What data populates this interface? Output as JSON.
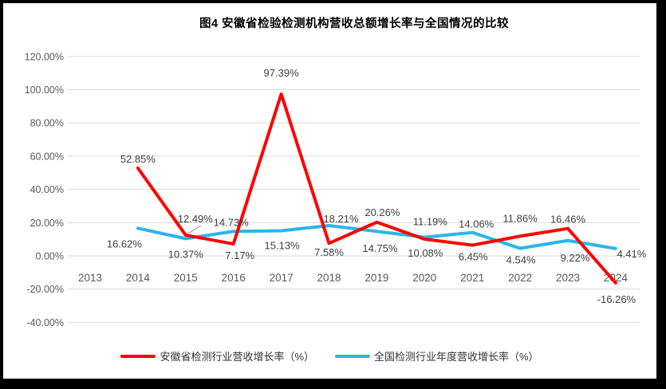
{
  "title": "图4  安徽省检验检测机构营收总额增长率与全国情况的比较",
  "chart_data": {
    "type": "line",
    "title": "图4  安徽省检验检测机构营收总额增长率与全国情况的比较",
    "categories": [
      "2013",
      "2014",
      "2015",
      "2016",
      "2017",
      "2018",
      "2019",
      "2020",
      "2021",
      "2022",
      "2023",
      "2024"
    ],
    "xlabel": "",
    "ylabel": "",
    "ylim": [
      -40,
      120
    ],
    "ytick_step": 20,
    "ytick_labels": [
      "120.00%",
      "100.00%",
      "80.00%",
      "60.00%",
      "40.00%",
      "20.00%",
      "0.00%",
      "-20.00%",
      "-40.00%"
    ],
    "grid": true,
    "legend_position": "bottom",
    "colors": {
      "anhui": "#FF0000",
      "national": "#29B6EB",
      "gridline": "#D9D9D9",
      "axis_text": "#595959",
      "data_label_text": "#404040",
      "leader_line": "#A6A6A6"
    },
    "series": [
      {
        "name": "安徽省检测行业营收增长率（%）",
        "color": "#FF0000",
        "values": [
          null,
          52.85,
          12.49,
          7.17,
          97.39,
          7.58,
          20.26,
          10.08,
          6.45,
          11.86,
          16.46,
          -16.26
        ],
        "point_labels": [
          null,
          "52.85%",
          "12.49%",
          "7.17%",
          "97.39%",
          "7.58%",
          "20.26%",
          "10.08%",
          "6.45%",
          "11.86%",
          "16.46%",
          "-16.26%"
        ],
        "label_offsets": [
          null,
          [
            0,
            -7
          ],
          [
            12,
            -16
          ],
          [
            8,
            19
          ],
          [
            0,
            -22
          ],
          [
            0,
            16
          ],
          [
            7,
            -8
          ],
          [
            1,
            22
          ],
          [
            1,
            19
          ],
          [
            0,
            -18
          ],
          [
            0,
            -7
          ],
          [
            1,
            25
          ]
        ],
        "leader_index": 2
      },
      {
        "name": "全国检测行业年度营收增长率（%）",
        "color": "#29B6EB",
        "values": [
          null,
          16.62,
          10.37,
          14.73,
          15.13,
          18.21,
          14.75,
          11.19,
          14.06,
          4.54,
          9.22,
          4.41
        ],
        "point_labels": [
          null,
          "16.62%",
          "10.37%",
          "14.73%",
          "15.13%",
          "18.21%",
          "14.75%",
          "11.19%",
          "14.06%",
          "4.54%",
          "9.22%",
          "4.41%"
        ],
        "label_offsets": [
          null,
          [
            -17,
            24
          ],
          [
            0,
            24
          ],
          [
            -3,
            -7
          ],
          [
            1,
            23
          ],
          [
            15,
            -4
          ],
          [
            4,
            26
          ],
          [
            7,
            -15
          ],
          [
            5,
            -6
          ],
          [
            1,
            19
          ],
          [
            9,
            26
          ],
          [
            20,
            11
          ]
        ]
      }
    ]
  }
}
